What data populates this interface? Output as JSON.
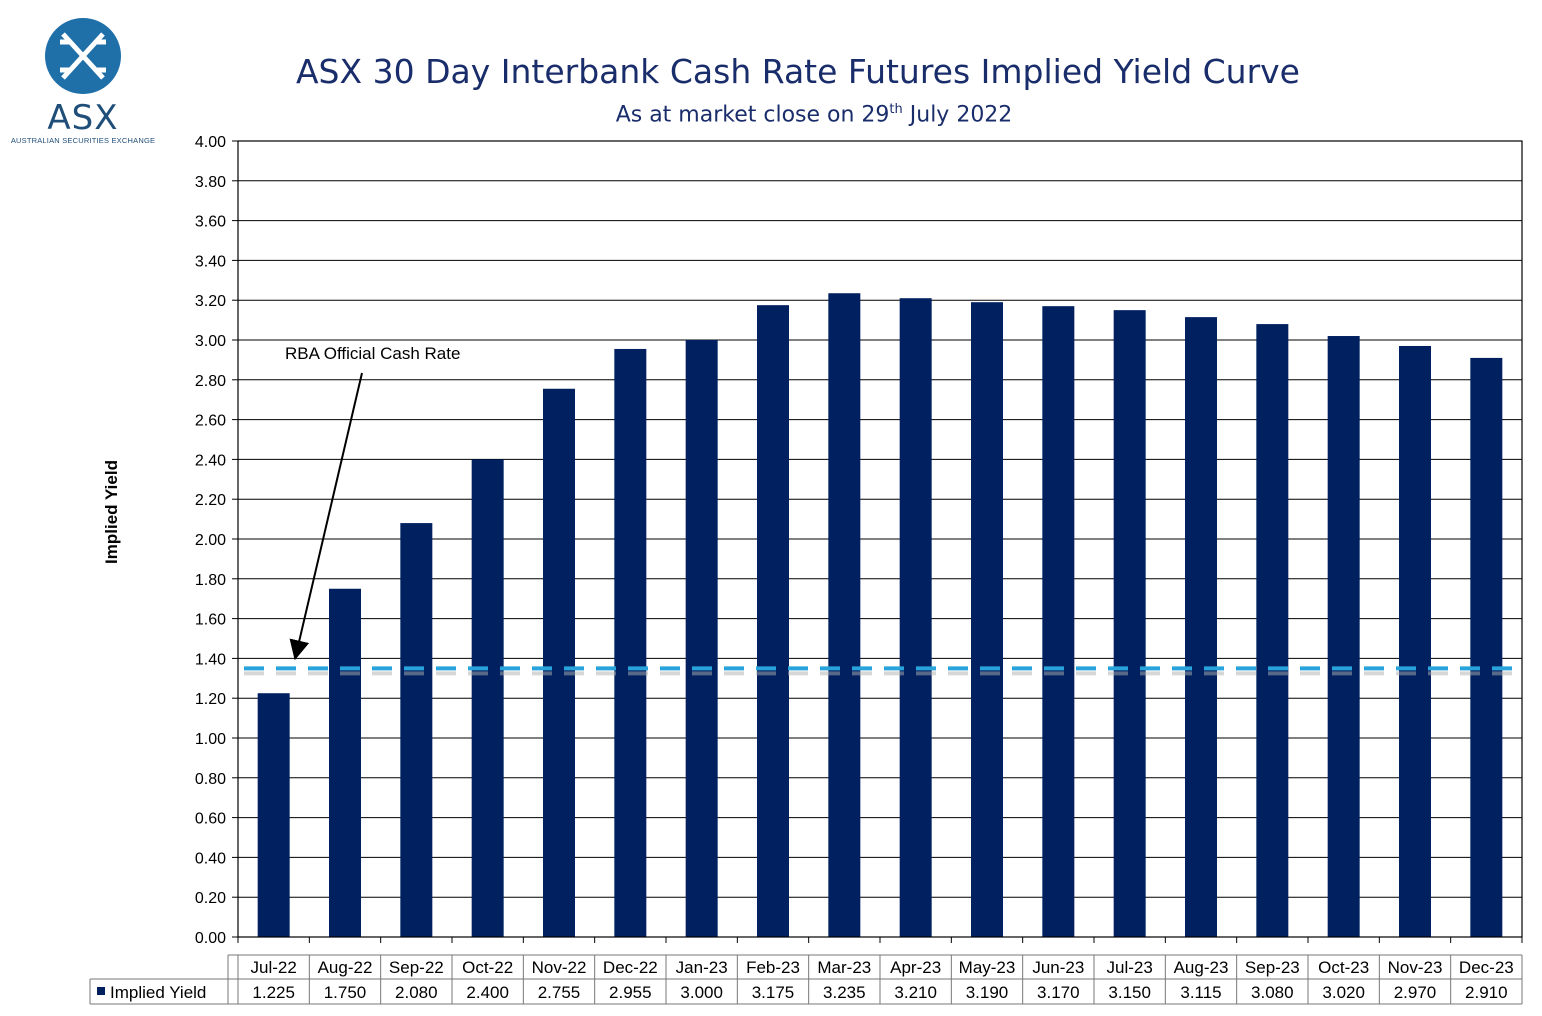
{
  "logo": {
    "main": "ASX",
    "sub": "AUSTRALIAN SECURITIES EXCHANGE",
    "color": "#1f6fa8"
  },
  "chart_data": {
    "type": "bar",
    "title": "ASX 30 Day Interbank Cash Rate Futures Implied Yield Curve",
    "subtitle_pre": "As at market close on 29",
    "subtitle_sup": "th",
    "subtitle_post": " July 2022",
    "ylabel": "Implied Yield",
    "xlabel": "",
    "ylim": [
      0,
      4
    ],
    "ytick_step": 0.2,
    "grid": true,
    "categories": [
      "Jul-22",
      "Aug-22",
      "Sep-22",
      "Oct-22",
      "Nov-22",
      "Dec-22",
      "Jan-23",
      "Feb-23",
      "Mar-23",
      "Apr-23",
      "May-23",
      "Jun-23",
      "Jul-23",
      "Aug-23",
      "Sep-23",
      "Oct-23",
      "Nov-23",
      "Dec-23"
    ],
    "series": [
      {
        "name": "Implied Yield",
        "color": "#002060",
        "values": [
          1.225,
          1.75,
          2.08,
          2.4,
          2.755,
          2.955,
          3.0,
          3.175,
          3.235,
          3.21,
          3.19,
          3.17,
          3.15,
          3.115,
          3.08,
          3.02,
          2.97,
          2.91
        ],
        "labels": [
          "1.225",
          "1.750",
          "2.080",
          "2.400",
          "2.755",
          "2.955",
          "3.000",
          "3.175",
          "3.235",
          "3.210",
          "3.190",
          "3.170",
          "3.150",
          "3.115",
          "3.080",
          "3.020",
          "2.970",
          "2.910"
        ]
      }
    ],
    "reference_line": {
      "value": 1.35,
      "color": "#29a3dc",
      "style": "dashed"
    },
    "annotation": {
      "text": "RBA Official Cash Rate",
      "points_to_value": 1.5
    },
    "data_table": true
  }
}
